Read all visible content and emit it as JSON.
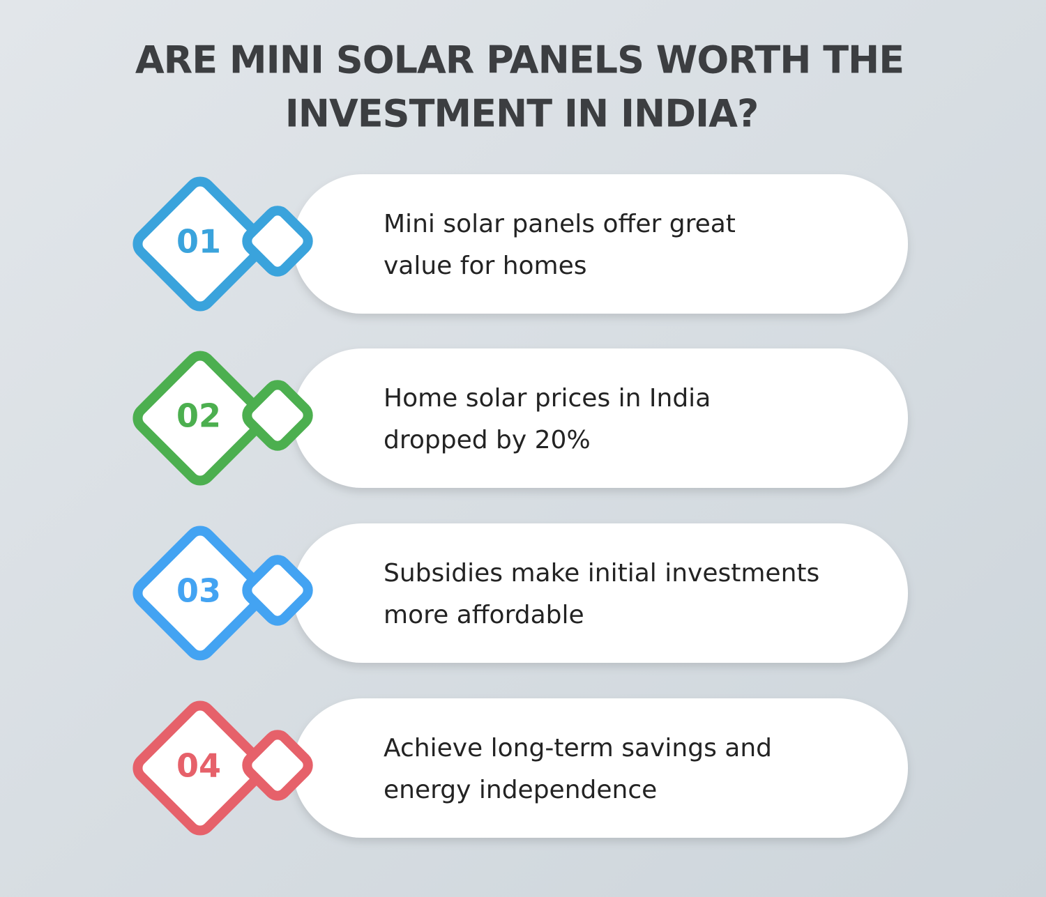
{
  "title": {
    "lines": [
      "ARE MINI SOLAR PANELS WORTH THE",
      "INVESTMENT IN INDIA?"
    ]
  },
  "items": [
    {
      "number": "01",
      "color": "#3aa3dc",
      "lines": [
        "Mini solar panels offer great",
        "value for homes"
      ]
    },
    {
      "number": "02",
      "color": "#4caf4f",
      "lines": [
        "Home solar prices in India",
        "dropped by 20%"
      ]
    },
    {
      "number": "03",
      "color": "#43a3f2",
      "lines": [
        "Subsidies make initial investments",
        "more affordable"
      ]
    },
    {
      "number": "04",
      "color": "#e6616a",
      "lines": [
        "Achieve long-term savings and",
        "energy independence"
      ]
    }
  ]
}
